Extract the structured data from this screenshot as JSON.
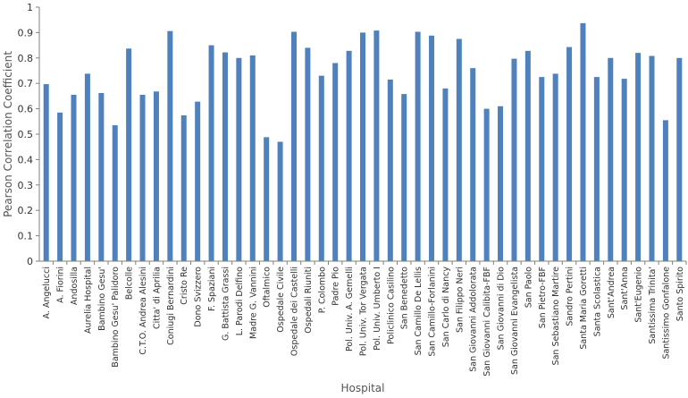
{
  "chart_data": {
    "type": "bar",
    "title": "",
    "xlabel": "Hospital",
    "ylabel": "Pearson Correlation Coefficient",
    "ylim": [
      0,
      1
    ],
    "yticks": [
      0,
      0.1,
      0.2,
      0.3,
      0.4,
      0.5,
      0.6,
      0.7,
      0.8,
      0.9,
      1
    ],
    "ytick_labels": [
      "0",
      "0.1",
      "0.2",
      "0.3",
      "0.4",
      "0.5",
      "0.6",
      "0.7",
      "0.8",
      "0.9",
      "1"
    ],
    "grid": false,
    "legend": "none",
    "bar_color": "#4F81BD",
    "categories": [
      "A. Angelucci",
      "A. Fiorini",
      "Andosilla",
      "Aurelia Hospital",
      "Bambino Gesu'",
      "Bambino Gesu' Palidoro",
      "Belcolle",
      "C.T.O. Andrea Alesini",
      "Citta' di Aprilia",
      "Coniugi Bernardini",
      "Cristo Re",
      "Dono Svizzero",
      "F. Spaziani",
      "G. Battista Grassi",
      "L. Parodi Delfino",
      "Madre G. Vannini",
      "Oftalmico",
      "Ospedale Civile",
      "Ospedale dei Castelli",
      "Ospedali Riuniti",
      "P. Colombo",
      "Padre Pio",
      "Pol. Univ. A. Gemelli",
      "Pol. Univ. Tor Vergata",
      "Pol. Univ. Umberto I",
      "Policlinico Casilino",
      "San Benedetto",
      "San Camillo De Lellis",
      "San Camillo-Forlanini",
      "San Carlo di Nancy",
      "San Filippo Neri",
      "San Giovanni Addolorata",
      "San Giovanni Calibita-FBF",
      "San Giovanni di Dio",
      "San Giovanni Evangelista",
      "San Paolo",
      "San Pietro-FBF",
      "San Sebastiano Martire",
      "Sandro Pertini",
      "Santa Maria Goretti",
      "Santa Scolastica",
      "Sant'Andrea",
      "Sant'Anna",
      "Sant'Eugenio",
      "Santissima Trinita'",
      "Santissimo Gonfalone",
      "Santo Spirito"
    ],
    "values": [
      0.697,
      0.585,
      0.655,
      0.738,
      0.662,
      0.535,
      0.837,
      0.655,
      0.668,
      0.906,
      0.574,
      0.628,
      0.85,
      0.822,
      0.8,
      0.81,
      0.488,
      0.47,
      0.903,
      0.84,
      0.73,
      0.78,
      0.828,
      0.9,
      0.908,
      0.715,
      0.658,
      0.903,
      0.888,
      0.68,
      0.875,
      0.76,
      0.6,
      0.61,
      0.797,
      0.828,
      0.725,
      0.738,
      0.843,
      0.937,
      0.725,
      0.8,
      0.718,
      0.82,
      0.808,
      0.555,
      0.8
    ]
  }
}
